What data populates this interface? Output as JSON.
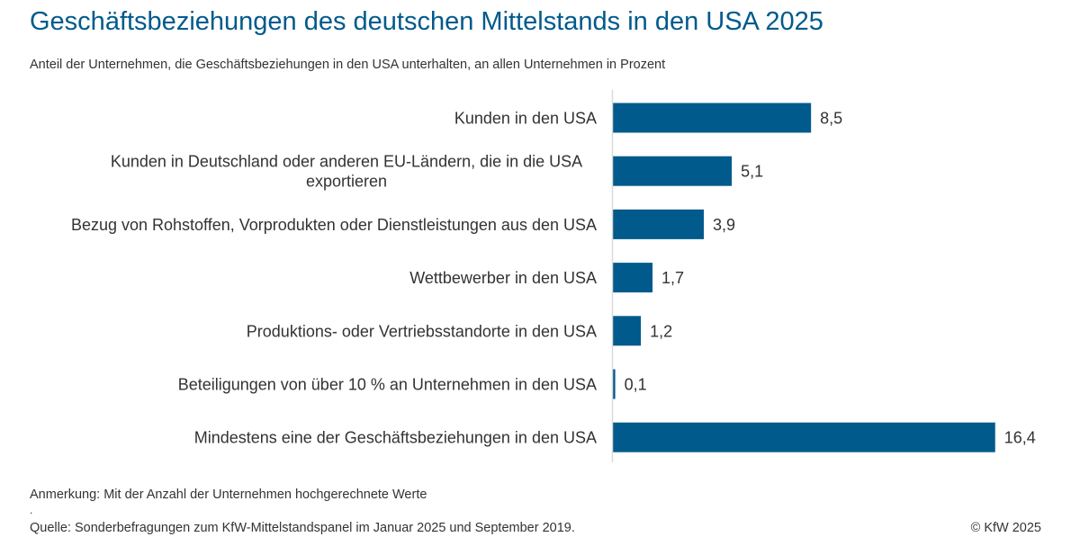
{
  "header": {
    "title": "Geschäftsbeziehungen des deutschen Mittelstands in den USA 2025",
    "subtitle": "Anteil der Unternehmen, die Geschäftsbeziehungen in den USA unterhalten, an allen Unternehmen in Prozent"
  },
  "chart_data": {
    "type": "bar",
    "orientation": "horizontal",
    "title": "Geschäftsbeziehungen des deutschen Mittelstands in den USA 2025",
    "subtitle": "Anteil der Unternehmen, die Geschäftsbeziehungen in den USA unterhalten, an allen Unternehmen in Prozent",
    "categories": [
      [
        "Kunden in den USA"
      ],
      [
        "Kunden in Deutschland oder anderen EU-Ländern, die in die USA",
        "exportieren"
      ],
      [
        "Bezug von Rohstoffen, Vorprodukten oder Dienstleistungen aus den USA"
      ],
      [
        "Wettbewerber in den USA"
      ],
      [
        "Produktions- oder Vertriebsstandorte in den USA"
      ],
      [
        "Beteiligungen von über 10 % an Unternehmen in den USA"
      ],
      [
        "Mindestens eine der Geschäftsbeziehungen in den USA"
      ]
    ],
    "values": [
      8.5,
      5.1,
      3.9,
      1.7,
      1.2,
      0.1,
      16.4
    ],
    "value_labels": [
      "8,5",
      "5,1",
      "3,9",
      "1,7",
      "1,2",
      "0,1",
      "16,4"
    ],
    "xlim": [
      0,
      18
    ],
    "xlabel": "",
    "ylabel": "",
    "grid": false,
    "bar_color": "#005a8c"
  },
  "footer": {
    "note": "Anmerkung: Mit der Anzahl der Unternehmen hochgerechnete Werte",
    "dot": ".",
    "source": "Quelle: Sonderbefragungen zum KfW-Mittelstandspanel im Januar 2025 und September 2019.",
    "copyright": "© KfW 2025"
  },
  "colors": {
    "title": "#005a8c",
    "bar": "#005a8c",
    "axis": "#d9d9d9"
  }
}
